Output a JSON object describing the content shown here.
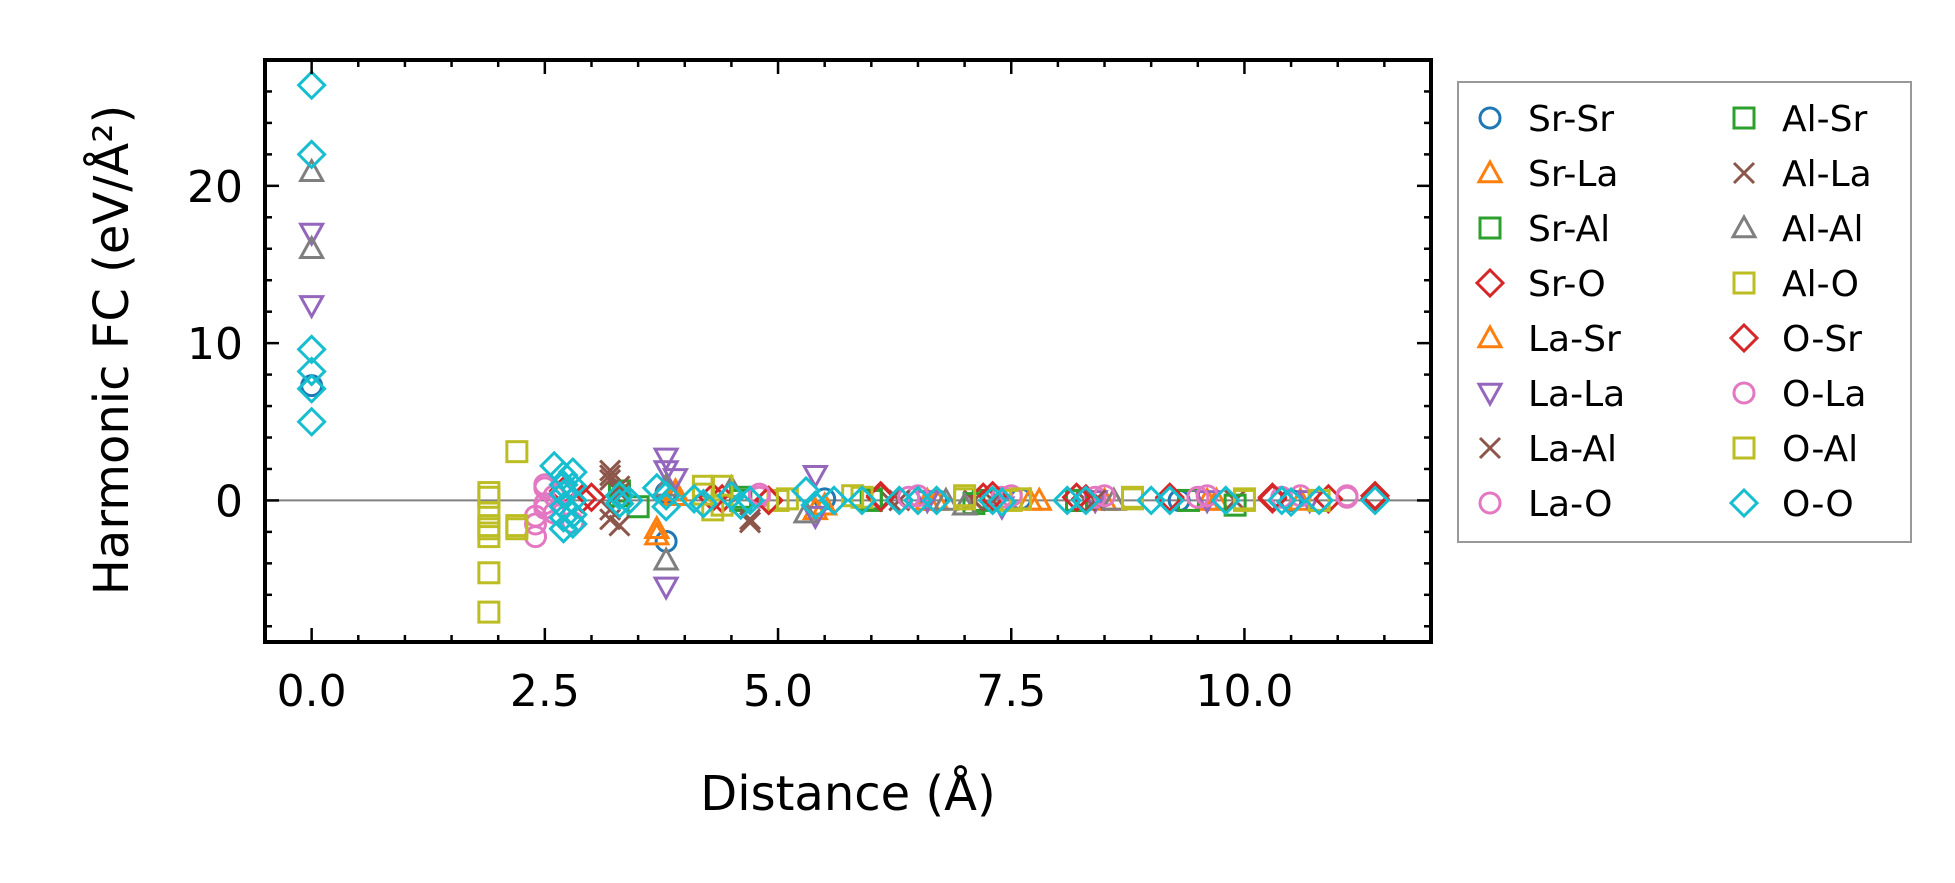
{
  "chart_data": {
    "type": "scatter",
    "xlabel": "Distance (Å)",
    "ylabel": "Harmonic FC (eV/Å²)",
    "xlim": [
      -0.5,
      12.0
    ],
    "ylim": [
      -9,
      28
    ],
    "xticks": [
      0.0,
      2.5,
      5.0,
      7.5,
      10.0
    ],
    "xtick_labels": [
      "0.0",
      "2.5",
      "5.0",
      "7.5",
      "10.0"
    ],
    "yticks": [
      0,
      10,
      20
    ],
    "ytick_labels": [
      "0",
      "10",
      "20"
    ],
    "reference_line": 0,
    "legend_position": "outside-right",
    "series": [
      {
        "name": "Sr-Sr",
        "marker": "circle",
        "color": "#1f77b4",
        "points": [
          [
            0.0,
            7.3
          ],
          [
            3.8,
            -2.6
          ],
          [
            3.8,
            0.5
          ],
          [
            5.5,
            0.1
          ],
          [
            6.7,
            0.0
          ],
          [
            7.6,
            0.1
          ],
          [
            8.3,
            0.0
          ],
          [
            9.3,
            0.0
          ],
          [
            10.5,
            0.0
          ]
        ]
      },
      {
        "name": "Sr-La",
        "marker": "triangle-up",
        "color": "#ff7f0e",
        "points": [
          [
            3.7,
            -1.8
          ],
          [
            3.9,
            0.3
          ],
          [
            5.4,
            -0.6
          ],
          [
            6.6,
            0.0
          ],
          [
            7.7,
            0.0
          ],
          [
            8.5,
            0.0
          ],
          [
            9.6,
            0.0
          ],
          [
            10.6,
            0.0
          ]
        ]
      },
      {
        "name": "Sr-Al",
        "marker": "square",
        "color": "#2ca02c",
        "points": [
          [
            3.3,
            0.6
          ],
          [
            3.5,
            -0.4
          ],
          [
            4.6,
            0.2
          ],
          [
            6.0,
            0.0
          ],
          [
            7.2,
            0.0
          ],
          [
            8.2,
            0.0
          ],
          [
            9.4,
            0.0
          ],
          [
            10.8,
            0.0
          ]
        ]
      },
      {
        "name": "Sr-O",
        "marker": "diamond",
        "color": "#d62728",
        "points": [
          [
            2.7,
            0.6
          ],
          [
            3.0,
            0.2
          ],
          [
            4.4,
            0.1
          ],
          [
            4.9,
            0.0
          ],
          [
            6.1,
            0.3
          ],
          [
            7.2,
            0.2
          ],
          [
            8.3,
            0.1
          ],
          [
            9.2,
            0.1
          ],
          [
            10.3,
            0.1
          ],
          [
            11.4,
            0.1
          ]
        ]
      },
      {
        "name": "La-Sr",
        "marker": "triangle-up",
        "color": "#ff7f0e",
        "points": [
          [
            3.7,
            -2.2
          ],
          [
            3.9,
            0.6
          ],
          [
            5.5,
            -0.3
          ],
          [
            6.7,
            0.0
          ],
          [
            7.8,
            0.0
          ],
          [
            8.6,
            0.0
          ],
          [
            9.7,
            0.0
          ]
        ]
      },
      {
        "name": "La-La",
        "marker": "triangle-down",
        "color": "#9467bd",
        "points": [
          [
            0.0,
            17.0
          ],
          [
            0.0,
            12.4
          ],
          [
            3.8,
            2.7
          ],
          [
            3.8,
            1.9
          ],
          [
            3.8,
            -5.5
          ],
          [
            3.9,
            1.4
          ],
          [
            5.4,
            1.6
          ],
          [
            5.4,
            -1.0
          ],
          [
            6.6,
            0.0
          ],
          [
            7.4,
            -0.4
          ],
          [
            8.4,
            0.0
          ],
          [
            9.6,
            0.0
          ],
          [
            10.7,
            0.0
          ]
        ]
      },
      {
        "name": "La-Al",
        "marker": "x",
        "color": "#8c564b",
        "points": [
          [
            3.2,
            1.9
          ],
          [
            3.2,
            1.3
          ],
          [
            3.2,
            -0.6
          ],
          [
            3.3,
            -1.6
          ],
          [
            3.3,
            0.9
          ],
          [
            4.7,
            -1.4
          ],
          [
            6.2,
            0.0
          ],
          [
            7.1,
            0.0
          ],
          [
            8.3,
            0.0
          ],
          [
            9.9,
            0.0
          ]
        ]
      },
      {
        "name": "La-O",
        "marker": "circle",
        "color": "#e377c2",
        "points": [
          [
            2.4,
            -2.3
          ],
          [
            2.4,
            -1.0
          ],
          [
            2.5,
            0.8
          ],
          [
            2.5,
            -0.5
          ],
          [
            2.6,
            0.3
          ],
          [
            2.8,
            -1.4
          ],
          [
            4.8,
            0.2
          ],
          [
            6.5,
            0.3
          ],
          [
            7.4,
            0.2
          ],
          [
            8.4,
            0.2
          ],
          [
            9.5,
            0.2
          ],
          [
            10.4,
            0.2
          ],
          [
            11.1,
            0.2
          ]
        ]
      },
      {
        "name": "Al-Sr",
        "marker": "square",
        "color": "#2ca02c",
        "points": [
          [
            3.3,
            0.3
          ],
          [
            4.6,
            0.0
          ],
          [
            6.0,
            0.1
          ],
          [
            7.1,
            -0.2
          ],
          [
            8.2,
            0.0
          ],
          [
            9.9,
            -0.3
          ]
        ]
      },
      {
        "name": "Al-La",
        "marker": "x",
        "color": "#8c564b",
        "points": [
          [
            3.2,
            1.6
          ],
          [
            3.2,
            -1.2
          ],
          [
            3.3,
            0.5
          ],
          [
            4.7,
            -1.2
          ],
          [
            6.3,
            0.0
          ],
          [
            7.3,
            0.0
          ],
          [
            8.4,
            0.0
          ]
        ]
      },
      {
        "name": "Al-Al",
        "marker": "triangle-up",
        "color": "#7f7f7f",
        "points": [
          [
            0.0,
            20.9
          ],
          [
            0.0,
            16.0
          ],
          [
            3.8,
            -3.8
          ],
          [
            3.8,
            0.9
          ],
          [
            4.5,
            0.8
          ],
          [
            5.3,
            -0.8
          ],
          [
            6.8,
            0.0
          ],
          [
            7.0,
            -0.3
          ],
          [
            8.6,
            0.0
          ]
        ]
      },
      {
        "name": "Al-O",
        "marker": "square",
        "color": "#bcbd22",
        "points": [
          [
            1.9,
            0.5
          ],
          [
            1.9,
            -0.8
          ],
          [
            1.9,
            -1.8
          ],
          [
            1.9,
            -2.3
          ],
          [
            1.9,
            -4.6
          ],
          [
            1.9,
            -7.1
          ],
          [
            2.2,
            3.1
          ],
          [
            2.2,
            -1.8
          ],
          [
            4.2,
            0.9
          ],
          [
            4.3,
            -0.6
          ],
          [
            4.4,
            0.9
          ],
          [
            5.0,
            0.0
          ],
          [
            5.8,
            0.3
          ],
          [
            7.0,
            0.3
          ],
          [
            7.5,
            0.0
          ],
          [
            8.8,
            0.1
          ],
          [
            10.0,
            0.1
          ]
        ]
      },
      {
        "name": "O-Sr",
        "marker": "diamond",
        "color": "#d62728",
        "points": [
          [
            2.7,
            0.4
          ],
          [
            2.9,
            0.1
          ],
          [
            4.3,
            0.2
          ],
          [
            4.9,
            0.0
          ],
          [
            6.1,
            0.2
          ],
          [
            7.3,
            0.3
          ],
          [
            8.2,
            0.2
          ],
          [
            9.2,
            0.2
          ],
          [
            10.3,
            0.2
          ],
          [
            10.9,
            0.1
          ],
          [
            11.4,
            0.3
          ]
        ]
      },
      {
        "name": "O-La",
        "marker": "circle",
        "color": "#e377c2",
        "points": [
          [
            2.4,
            -1.5
          ],
          [
            2.5,
            -0.2
          ],
          [
            2.5,
            1.0
          ],
          [
            2.6,
            -0.8
          ],
          [
            2.7,
            0.5
          ],
          [
            4.8,
            0.4
          ],
          [
            6.4,
            0.2
          ],
          [
            7.5,
            0.3
          ],
          [
            8.5,
            0.3
          ],
          [
            9.6,
            0.3
          ],
          [
            10.6,
            0.3
          ],
          [
            11.1,
            0.3
          ]
        ]
      },
      {
        "name": "O-Al",
        "marker": "square",
        "color": "#bcbd22",
        "points": [
          [
            1.9,
            0.2
          ],
          [
            1.9,
            -1.6
          ],
          [
            2.2,
            -1.6
          ],
          [
            4.2,
            0.4
          ],
          [
            4.4,
            -0.3
          ],
          [
            5.1,
            0.1
          ],
          [
            5.9,
            0.2
          ],
          [
            7.0,
            0.1
          ],
          [
            7.6,
            0.1
          ],
          [
            8.8,
            0.2
          ],
          [
            10.0,
            0.0
          ],
          [
            10.8,
            0.0
          ]
        ]
      },
      {
        "name": "O-O",
        "marker": "diamond",
        "color": "#17becf",
        "points": [
          [
            0.0,
            26.4
          ],
          [
            0.0,
            22.0
          ],
          [
            0.0,
            9.6
          ],
          [
            0.0,
            8.2
          ],
          [
            0.0,
            7.1
          ],
          [
            0.0,
            5.0
          ],
          [
            2.6,
            2.2
          ],
          [
            2.7,
            1.6
          ],
          [
            2.7,
            1.0
          ],
          [
            2.7,
            0.4
          ],
          [
            2.7,
            -0.4
          ],
          [
            2.7,
            -1.1
          ],
          [
            2.7,
            -1.8
          ],
          [
            2.8,
            1.8
          ],
          [
            2.8,
            0.9
          ],
          [
            2.8,
            0.0
          ],
          [
            2.8,
            -0.9
          ],
          [
            2.8,
            -1.5
          ],
          [
            3.3,
            0.3
          ],
          [
            3.3,
            -0.2
          ],
          [
            3.4,
            0.0
          ],
          [
            3.7,
            0.8
          ],
          [
            3.8,
            0.3
          ],
          [
            3.8,
            -0.4
          ],
          [
            4.1,
            0.1
          ],
          [
            4.2,
            -0.2
          ],
          [
            4.5,
            0.3
          ],
          [
            4.6,
            -0.3
          ],
          [
            4.7,
            0.0
          ],
          [
            5.3,
            0.6
          ],
          [
            5.4,
            -0.3
          ],
          [
            5.6,
            0.0
          ],
          [
            5.9,
            0.0
          ],
          [
            6.3,
            0.0
          ],
          [
            6.5,
            0.0
          ],
          [
            6.7,
            0.0
          ],
          [
            7.3,
            0.0
          ],
          [
            7.4,
            -0.1
          ],
          [
            8.1,
            0.0
          ],
          [
            8.3,
            0.0
          ],
          [
            9.0,
            0.0
          ],
          [
            9.2,
            0.0
          ],
          [
            9.8,
            0.0
          ],
          [
            10.4,
            0.0
          ],
          [
            10.5,
            -0.1
          ],
          [
            10.8,
            0.0
          ],
          [
            11.4,
            0.0
          ]
        ]
      }
    ]
  }
}
